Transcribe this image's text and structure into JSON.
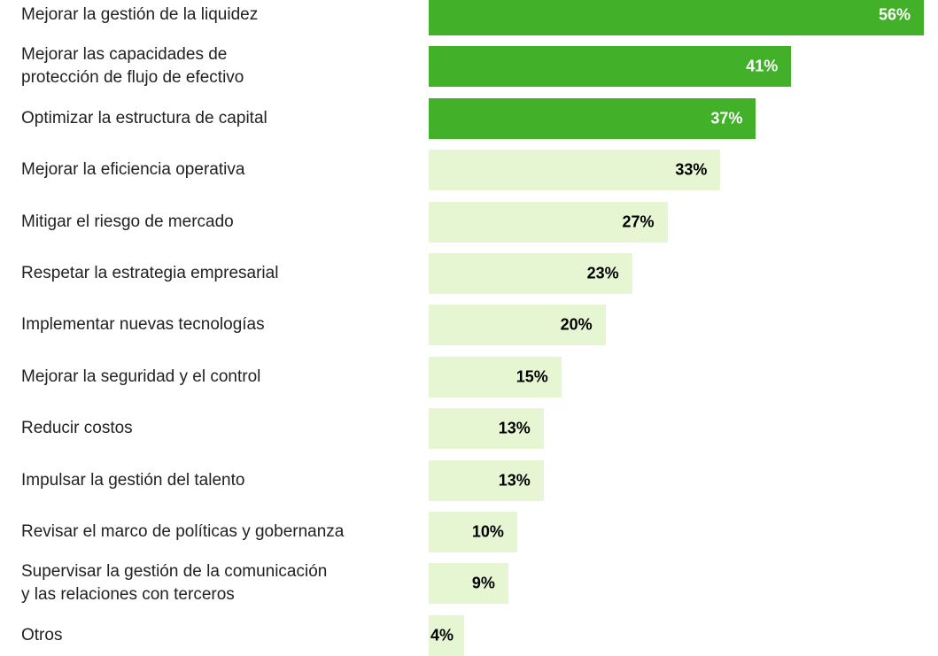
{
  "chart_data": {
    "type": "bar",
    "orientation": "horizontal",
    "categories": [
      "Mejorar la gestión de la liquidez",
      "Mejorar las capacidades de\nprotección de flujo de efectivo",
      "Optimizar la estructura de capital",
      "Mejorar la eficiencia operativa",
      "Mitigar el riesgo de mercado",
      "Respetar la estrategia empresarial",
      "Implementar nuevas tecnologías",
      "Mejorar la seguridad y el control",
      "Reducir costos",
      "Impulsar la gestión del talento",
      "Revisar el marco de políticas y gobernanza",
      "Supervisar la gestión de la comunicación\ny las relaciones con terceros",
      "Otros"
    ],
    "values": [
      56,
      41,
      37,
      33,
      27,
      23,
      20,
      15,
      13,
      13,
      10,
      9,
      4
    ],
    "value_labels": [
      "56%",
      "41%",
      "37%",
      "33%",
      "27%",
      "23%",
      "20%",
      "15%",
      "13%",
      "13%",
      "10%",
      "9%",
      "4%"
    ],
    "colors": [
      "#43b02a",
      "#43b02a",
      "#43b02a",
      "#e6f5d2",
      "#e6f5d2",
      "#e6f5d2",
      "#e6f5d2",
      "#e6f5d2",
      "#e6f5d2",
      "#e6f5d2",
      "#e6f5d2",
      "#e6f5d2",
      "#e6f5d2"
    ]
  }
}
